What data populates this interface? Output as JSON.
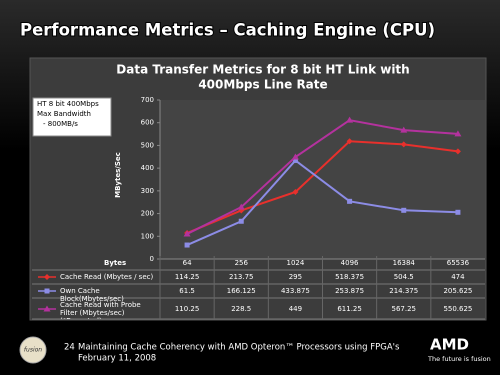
{
  "slide": {
    "title": "Performance Metrics – Caching Engine (CPU)",
    "page_number": "24",
    "footer": "Maintaining Cache Coherency with AMD Opteron™ Processors using FPGA's",
    "date": "February 11, 2008",
    "left_logo": "fusion",
    "right_logo": "AMD",
    "tagline": "The future is fusion"
  },
  "chart_data": {
    "type": "line",
    "title": [
      "Data Transfer Metrics for 8 bit HT Link with",
      "400Mbps Line Rate"
    ],
    "y_label": "MBytes/Sec",
    "table_header": "Bytes",
    "annotation": [
      "HT 8 bit 400Mbps",
      "Max Bandwidth",
      "- 800MB/s"
    ],
    "categories": [
      "64",
      "256",
      "1024",
      "4096",
      "16384",
      "65536"
    ],
    "series": [
      {
        "name": "Cache Read (Mbytes / sec)",
        "color": "#e8302c",
        "marker": "diamond",
        "values": [
          114.25,
          213.75,
          295,
          518.375,
          504.5,
          474
        ]
      },
      {
        "name": "Own Cache Block(Mbytes/sec)",
        "color": "#8c8ce6",
        "marker": "square",
        "values": [
          61.5,
          166.125,
          433.875,
          253.875,
          214.375,
          205.625
        ]
      },
      {
        "name": "Cache Read with Probe Filter (Mbytes/sec) (*Expected)",
        "color": "#b4329e",
        "marker": "triangle",
        "values": [
          110.25,
          228.5,
          449,
          611.25,
          567.25,
          550.625
        ]
      }
    ],
    "ylim": [
      0,
      700
    ],
    "yticks": [
      0,
      100,
      200,
      300,
      400,
      500,
      600,
      700
    ]
  }
}
